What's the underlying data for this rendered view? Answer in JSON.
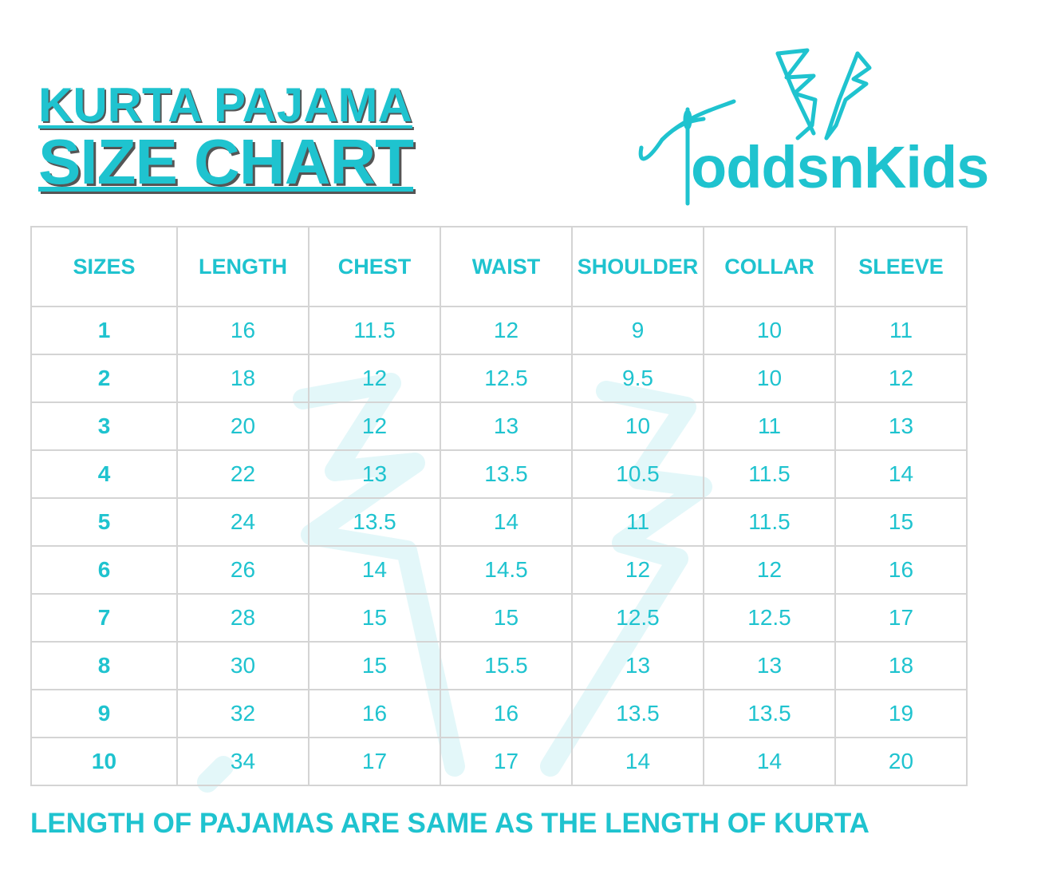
{
  "title": {
    "line1": "KURTA PAJAMA",
    "line2": "SIZE CHART"
  },
  "brand": {
    "name": "ToddsnKids",
    "logo_text": "oddsnKids",
    "logo_icon": "needle-and-bunny-ears-icon"
  },
  "colors": {
    "accent": "#1fc3cf",
    "grid": "#d4d4d4",
    "shadow": "#555555"
  },
  "table": {
    "headers": [
      "SIZES",
      "LENGTH",
      "CHEST",
      "WAIST",
      "SHOULDER",
      "COLLAR",
      "SLEEVE"
    ],
    "rows": [
      [
        "1",
        "16",
        "11.5",
        "12",
        "9",
        "10",
        "11"
      ],
      [
        "2",
        "18",
        "12",
        "12.5",
        "9.5",
        "10",
        "12"
      ],
      [
        "3",
        "20",
        "12",
        "13",
        "10",
        "11",
        "13"
      ],
      [
        "4",
        "22",
        "13",
        "13.5",
        "10.5",
        "11.5",
        "14"
      ],
      [
        "5",
        "24",
        "13.5",
        "14",
        "11",
        "11.5",
        "15"
      ],
      [
        "6",
        "26",
        "14",
        "14.5",
        "12",
        "12",
        "16"
      ],
      [
        "7",
        "28",
        "15",
        "15",
        "12.5",
        "12.5",
        "17"
      ],
      [
        "8",
        "30",
        "15",
        "15.5",
        "13",
        "13",
        "18"
      ],
      [
        "9",
        "32",
        "16",
        "16",
        "13.5",
        "13.5",
        "19"
      ],
      [
        "10",
        "34",
        "17",
        "17",
        "14",
        "14",
        "20"
      ]
    ]
  },
  "footer": {
    "note": "LENGTH OF PAJAMAS ARE SAME AS THE LENGTH OF KURTA"
  }
}
